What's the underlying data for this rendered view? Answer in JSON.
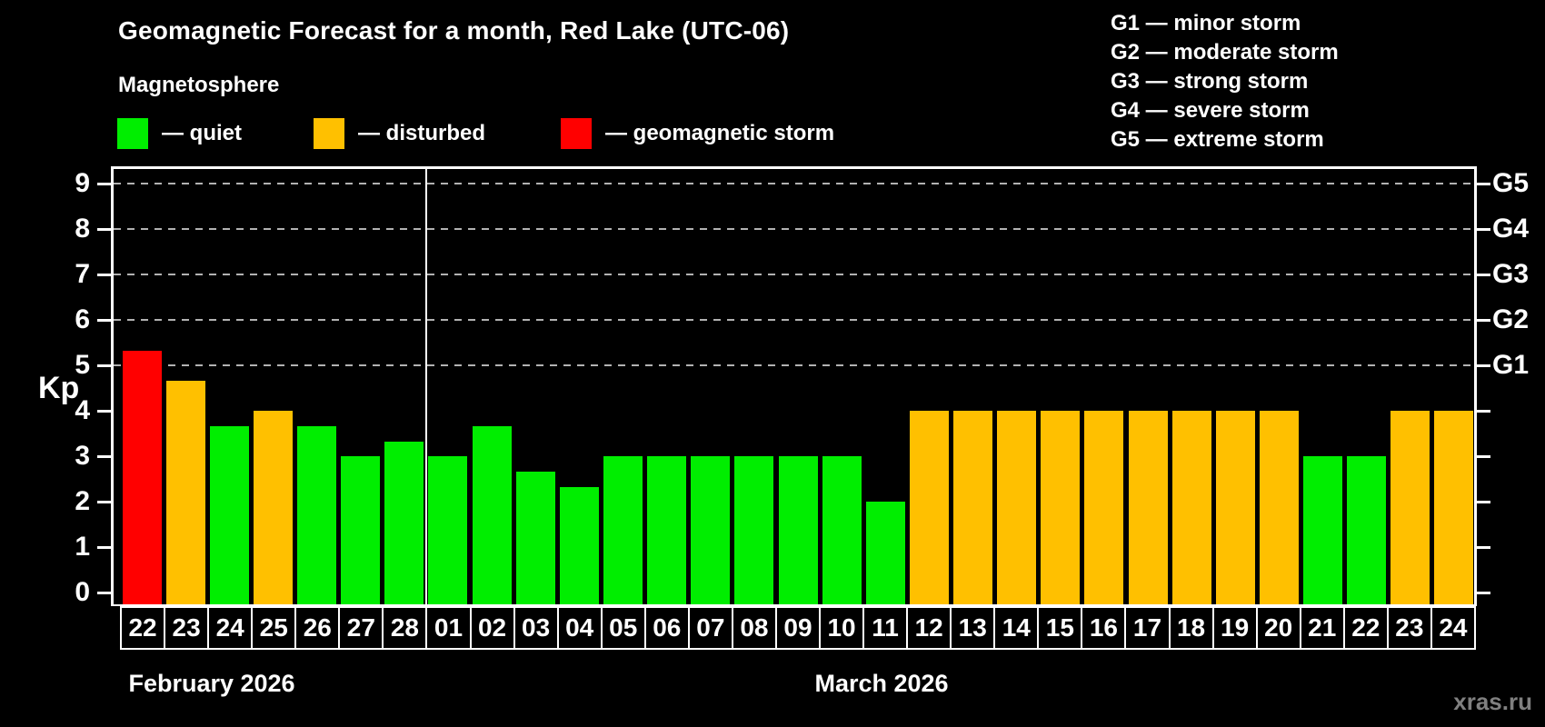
{
  "header": {
    "title": "Geomagnetic Forecast for a month, Red Lake (UTC-06)",
    "subtitle": "Magnetosphere",
    "legend": [
      {
        "label": "— quiet",
        "status": "quiet"
      },
      {
        "label": "— disturbed",
        "status": "disturbed"
      },
      {
        "label": "— geomagnetic storm",
        "status": "storm"
      }
    ],
    "storm_scale": [
      "G1 — minor storm",
      "G2 — moderate storm",
      "G3 — strong storm",
      "G4 — severe storm",
      "G5 — extreme storm"
    ]
  },
  "watermark": "xras.ru",
  "chart_data": {
    "type": "bar",
    "ylabel": "Kp",
    "ylim": [
      0,
      9
    ],
    "yticks": [
      0,
      1,
      2,
      3,
      4,
      5,
      6,
      7,
      8,
      9
    ],
    "gridlines_at": [
      5,
      6,
      7,
      8,
      9
    ],
    "grid": "dashed horizontal at G-storm levels",
    "legend_position": "top-left",
    "right_axis": [
      {
        "kp": 5,
        "label": "G1"
      },
      {
        "kp": 6,
        "label": "G2"
      },
      {
        "kp": 7,
        "label": "G3"
      },
      {
        "kp": 8,
        "label": "G4"
      },
      {
        "kp": 9,
        "label": "G5"
      }
    ],
    "colors": {
      "quiet": "#00ee00",
      "disturbed": "#ffc000",
      "storm": "#ff0000"
    },
    "months": [
      {
        "label": "February 2026",
        "day_count": 7
      },
      {
        "label": "March 2026",
        "day_count": 24
      }
    ],
    "categories": [
      "22",
      "23",
      "24",
      "25",
      "26",
      "27",
      "28",
      "01",
      "02",
      "03",
      "04",
      "05",
      "06",
      "07",
      "08",
      "09",
      "10",
      "11",
      "12",
      "13",
      "14",
      "15",
      "16",
      "17",
      "18",
      "19",
      "20",
      "21",
      "22",
      "23",
      "24"
    ],
    "values": [
      5.33,
      4.67,
      3.67,
      4,
      3.67,
      3,
      3.33,
      3,
      3.67,
      2.67,
      2.33,
      3,
      3,
      3,
      3,
      3,
      3,
      2,
      4,
      4,
      4,
      4,
      4,
      4,
      4,
      4,
      4,
      3,
      3,
      4,
      4
    ],
    "statuses": [
      "storm",
      "disturbed",
      "quiet",
      "disturbed",
      "quiet",
      "quiet",
      "quiet",
      "quiet",
      "quiet",
      "quiet",
      "quiet",
      "quiet",
      "quiet",
      "quiet",
      "quiet",
      "quiet",
      "quiet",
      "quiet",
      "disturbed",
      "disturbed",
      "disturbed",
      "disturbed",
      "disturbed",
      "disturbed",
      "disturbed",
      "disturbed",
      "disturbed",
      "quiet",
      "quiet",
      "disturbed",
      "disturbed"
    ]
  }
}
